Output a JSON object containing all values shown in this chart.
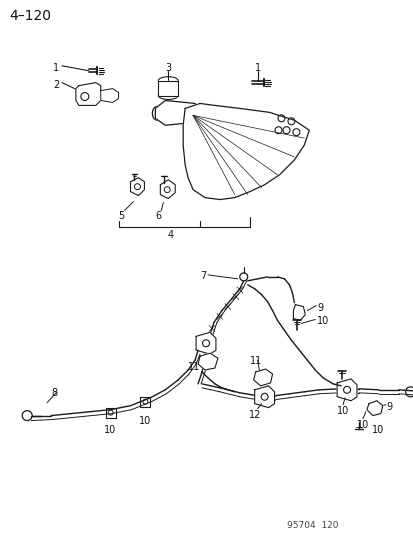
{
  "title": "4–120",
  "footer": "95704  120",
  "bg_color": "#ffffff",
  "line_color": "#1a1a1a",
  "text_color": "#111111",
  "figsize": [
    4.14,
    5.33
  ],
  "dpi": 100
}
